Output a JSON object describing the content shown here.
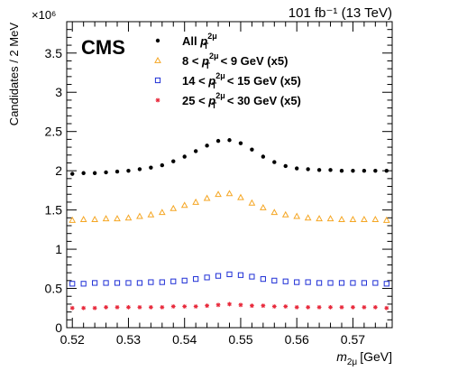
{
  "chart_data": {
    "type": "scatter",
    "lumi_label": "101 fb⁻¹ (13 TeV)",
    "experiment_label": "CMS",
    "y_multiplier": "×10⁶",
    "xlabel": "m",
    "xlabel_subscript": "2μ",
    "xlabel_unit": "[GeV]",
    "ylabel": "Candidates / 2 MeV",
    "xlim": [
      0.519,
      0.577
    ],
    "ylim": [
      0,
      3.9
    ],
    "x_ticks": [
      "0.52",
      "0.53",
      "0.54",
      "0.55",
      "0.56",
      "0.57"
    ],
    "x_tick_values": [
      0.52,
      0.53,
      0.54,
      0.55,
      0.56,
      0.57
    ],
    "y_ticks": [
      "0",
      "0.5",
      "1",
      "1.5",
      "2",
      "2.5",
      "3",
      "3.5"
    ],
    "y_tick_values": [
      0,
      0.5,
      1,
      1.5,
      2,
      2.5,
      3,
      3.5
    ],
    "x": [
      0.52,
      0.522,
      0.524,
      0.526,
      0.528,
      0.53,
      0.532,
      0.534,
      0.536,
      0.538,
      0.54,
      0.542,
      0.544,
      0.546,
      0.548,
      0.55,
      0.552,
      0.554,
      0.556,
      0.558,
      0.56,
      0.562,
      0.564,
      0.566,
      0.568,
      0.57,
      0.572,
      0.574,
      0.576
    ],
    "series": [
      {
        "name_parts": [
          "All ",
          "p",
          "T",
          "2μ",
          ""
        ],
        "color": "#000000",
        "marker": "dot",
        "values": [
          1.96,
          1.97,
          1.97,
          1.98,
          1.99,
          2.0,
          2.02,
          2.04,
          2.07,
          2.12,
          2.18,
          2.25,
          2.32,
          2.38,
          2.39,
          2.35,
          2.27,
          2.18,
          2.11,
          2.06,
          2.03,
          2.02,
          2.01,
          2.01,
          2.0,
          2.0,
          2.0,
          2.0,
          2.0
        ]
      },
      {
        "name_parts": [
          "8 < ",
          "p",
          "T",
          "2μ",
          " < 9 GeV (x5)"
        ],
        "color": "#f5a623",
        "marker": "triangle",
        "values": [
          1.37,
          1.38,
          1.38,
          1.39,
          1.39,
          1.4,
          1.42,
          1.44,
          1.47,
          1.52,
          1.56,
          1.6,
          1.65,
          1.7,
          1.71,
          1.66,
          1.59,
          1.53,
          1.47,
          1.44,
          1.42,
          1.4,
          1.39,
          1.39,
          1.38,
          1.38,
          1.38,
          1.38,
          1.37
        ]
      },
      {
        "name_parts": [
          "14 < ",
          "p",
          "T",
          "2μ",
          " < 15 GeV (x5)"
        ],
        "color": "#1f2fd6",
        "marker": "square",
        "values": [
          0.56,
          0.56,
          0.57,
          0.57,
          0.57,
          0.57,
          0.57,
          0.58,
          0.58,
          0.59,
          0.6,
          0.62,
          0.64,
          0.66,
          0.68,
          0.67,
          0.65,
          0.62,
          0.6,
          0.59,
          0.58,
          0.58,
          0.57,
          0.57,
          0.57,
          0.57,
          0.57,
          0.57,
          0.56
        ]
      },
      {
        "name_parts": [
          "25 < ",
          "p",
          "T",
          "2μ",
          " < 30 GeV (x5)"
        ],
        "color": "#e8283a",
        "marker": "star",
        "values": [
          0.25,
          0.25,
          0.25,
          0.26,
          0.26,
          0.26,
          0.26,
          0.26,
          0.26,
          0.27,
          0.27,
          0.27,
          0.28,
          0.29,
          0.3,
          0.29,
          0.28,
          0.28,
          0.27,
          0.27,
          0.26,
          0.26,
          0.26,
          0.26,
          0.26,
          0.26,
          0.26,
          0.26,
          0.25
        ]
      }
    ],
    "legend_position": "top-center",
    "grid": false
  }
}
